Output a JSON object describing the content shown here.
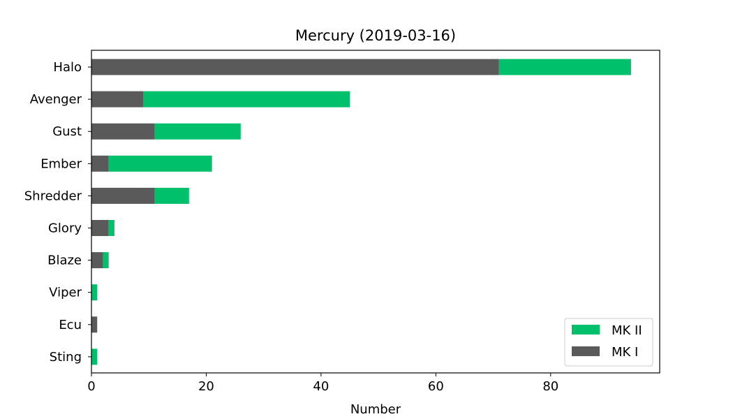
{
  "chart_data": {
    "type": "bar",
    "orientation": "horizontal",
    "stacked": true,
    "title": "Mercury (2019-03-16)",
    "xlabel": "Number",
    "ylabel": "",
    "xlim": [
      0,
      99
    ],
    "xticks": [
      0,
      20,
      40,
      60,
      80
    ],
    "grid": false,
    "legend_position": "lower-right",
    "categories": [
      "Halo",
      "Avenger",
      "Gust",
      "Ember",
      "Shredder",
      "Glory",
      "Blaze",
      "Viper",
      "Ecu",
      "Sting"
    ],
    "series": [
      {
        "name": "MK I",
        "color": "#595a59",
        "values": [
          71,
          9,
          11,
          3,
          11,
          3,
          2,
          0,
          1,
          0
        ]
      },
      {
        "name": "MK II",
        "color": "#00c06b",
        "values": [
          23,
          36,
          15,
          18,
          6,
          1,
          1,
          1,
          0,
          1
        ]
      }
    ],
    "legend_order": [
      "MK II",
      "MK I"
    ]
  }
}
